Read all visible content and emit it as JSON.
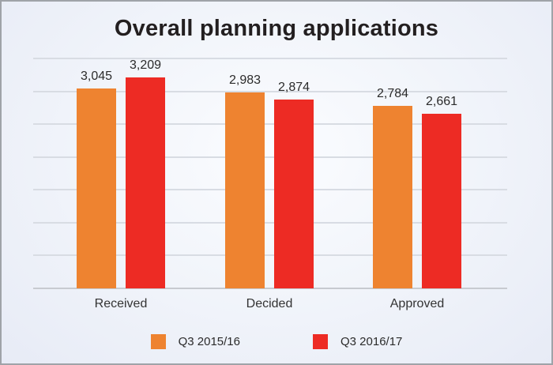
{
  "chart_data": {
    "type": "bar",
    "title": "Overall planning applications",
    "categories": [
      "Received",
      "Decided",
      "Approved"
    ],
    "series": [
      {
        "name": "Q3 2015/16",
        "color": "#ee8330",
        "values": [
          3045,
          2983,
          2784
        ],
        "value_labels": [
          "3,045",
          "2,983",
          "2,784"
        ]
      },
      {
        "name": "Q3 2016/17",
        "color": "#ed2b24",
        "values": [
          3209,
          2874,
          2661
        ],
        "value_labels": [
          "3,209",
          "2,874",
          "2,661"
        ]
      }
    ],
    "xlabel": "",
    "ylabel": "",
    "ylim": [
      0,
      3500
    ],
    "gridline_step": 500,
    "grid": true,
    "y_axis_tick_labels_visible": false,
    "legend_position": "bottom"
  },
  "colors": {
    "background_center": "#fbfcff",
    "background_edge": "#e7ebf6",
    "border": "#9fa3a8",
    "gridline": "#d8dce3",
    "axis_line": "#c7cad0",
    "title_text": "#231f20",
    "label_text": "#2b2b2b"
  }
}
